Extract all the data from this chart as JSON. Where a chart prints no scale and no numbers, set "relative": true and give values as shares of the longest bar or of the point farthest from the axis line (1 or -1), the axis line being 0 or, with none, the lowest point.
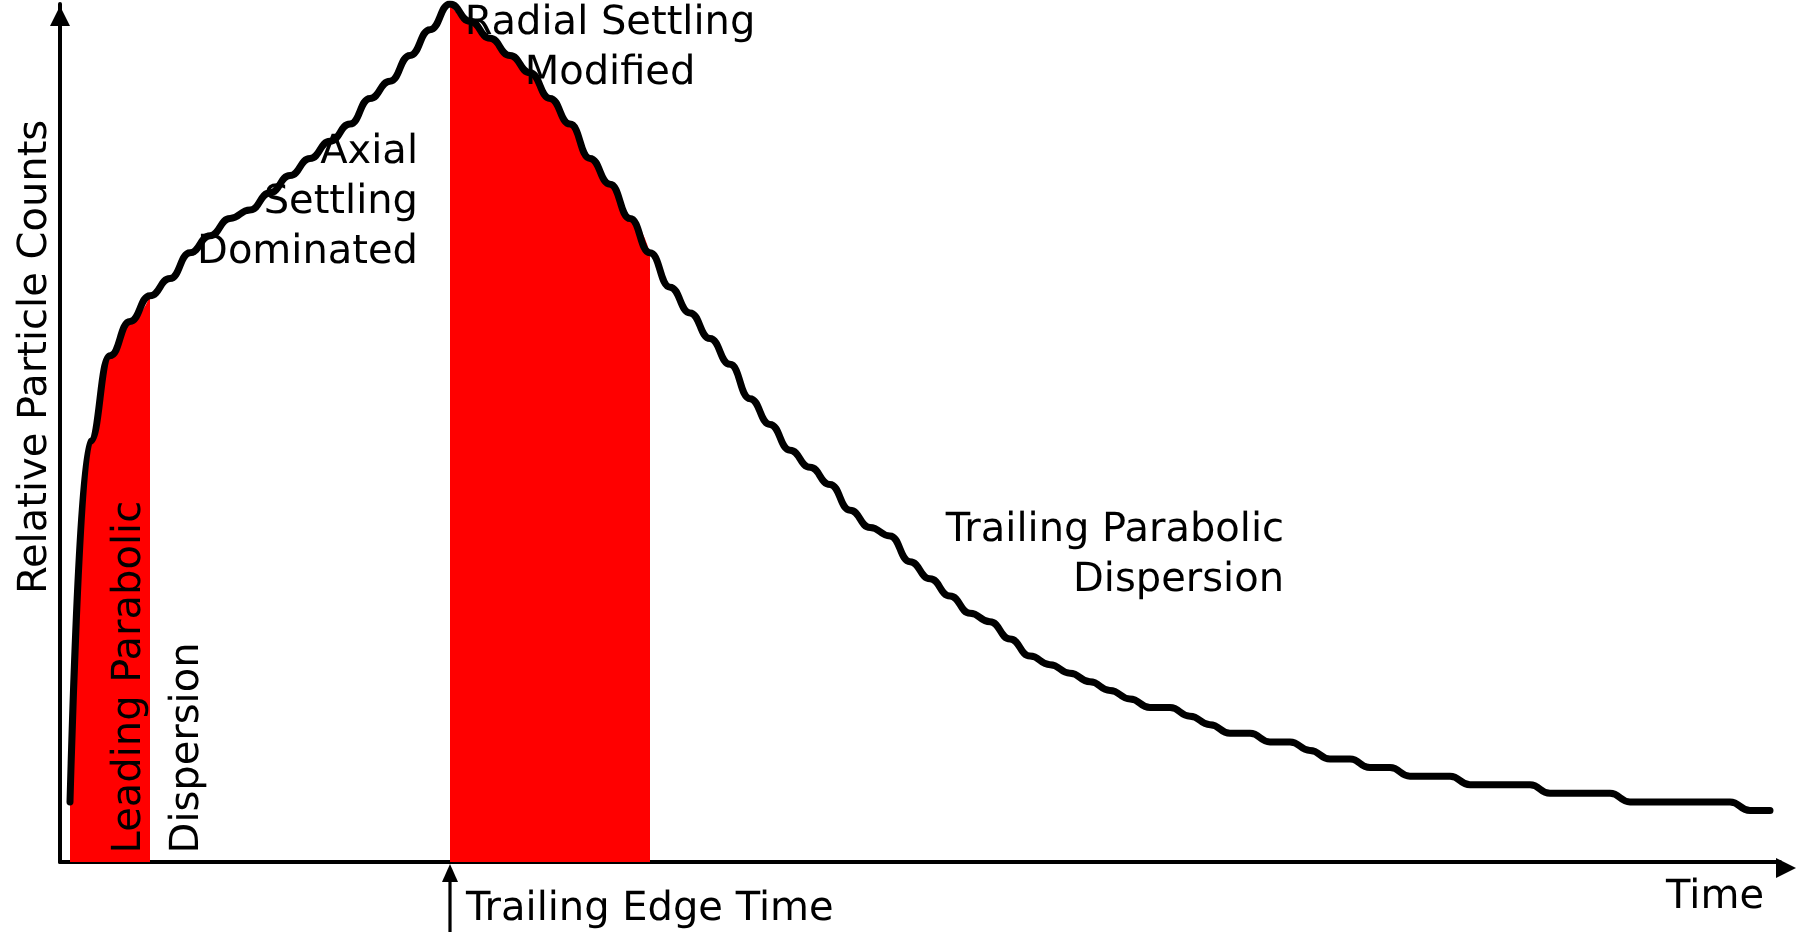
{
  "chart_data": {
    "type": "line",
    "relative": true,
    "xlabel": "Time",
    "ylabel": "Relative Particle Counts",
    "grid": false,
    "marker": "none",
    "line_style": "solid",
    "categories": [
      null,
      null,
      null,
      null,
      null,
      null,
      null,
      null,
      null,
      null,
      null,
      null,
      null,
      null,
      null,
      null,
      null,
      null,
      null,
      null,
      null,
      null,
      null,
      null,
      null,
      null,
      null,
      null,
      null,
      null,
      null,
      null,
      null,
      null,
      null,
      null,
      null,
      null,
      null,
      null,
      null,
      null,
      null,
      null,
      null,
      null,
      null,
      null,
      null,
      null,
      null,
      null,
      null,
      null,
      null,
      null,
      null,
      null,
      null,
      null,
      null,
      null,
      null,
      null,
      null,
      null,
      null,
      null,
      null,
      null,
      null,
      null,
      null,
      null,
      null,
      null,
      null,
      null,
      null,
      null,
      null,
      null,
      null,
      null,
      null,
      null
    ],
    "series": [
      {
        "type": "area",
        "color": "#ff0000",
        "values": [
          0.07,
          0.49,
          0.59,
          0.63,
          0.66,
          null,
          null,
          null,
          null,
          null,
          null,
          null,
          null,
          null,
          null,
          null,
          null,
          null,
          null,
          null,
          null,
          null,
          null,
          null,
          null,
          null,
          null,
          null,
          null,
          null,
          null,
          null,
          null,
          null,
          null,
          null,
          null,
          null,
          null,
          null,
          null,
          null,
          null,
          null,
          null,
          null,
          null,
          null,
          null,
          null,
          null,
          null,
          null,
          null,
          null,
          null,
          null,
          null,
          null,
          null,
          null,
          null,
          null,
          null,
          null,
          null,
          null,
          null,
          null,
          null,
          null,
          null,
          null,
          null,
          null,
          null,
          null,
          null,
          null,
          null,
          null,
          null,
          null,
          null,
          null,
          null
        ]
      },
      {
        "type": "area",
        "color": "#ff0000",
        "values": [
          null,
          null,
          null,
          null,
          null,
          null,
          null,
          null,
          null,
          null,
          null,
          null,
          null,
          null,
          null,
          null,
          null,
          null,
          null,
          1.0,
          0.98,
          0.96,
          0.94,
          0.92,
          0.89,
          0.86,
          0.82,
          0.79,
          0.75,
          0.71,
          null,
          null,
          null,
          null,
          null,
          null,
          null,
          null,
          null,
          null,
          null,
          null,
          null,
          null,
          null,
          null,
          null,
          null,
          null,
          null,
          null,
          null,
          null,
          null,
          null,
          null,
          null,
          null,
          null,
          null,
          null,
          null,
          null,
          null,
          null,
          null,
          null,
          null,
          null,
          null,
          null,
          null,
          null,
          null,
          null,
          null,
          null,
          null,
          null,
          null,
          null,
          null,
          null,
          null,
          null,
          null
        ]
      },
      {
        "color": "#000000",
        "values": [
          0.07,
          0.49,
          0.59,
          0.63,
          0.66,
          0.68,
          0.71,
          0.73,
          0.75,
          0.76,
          0.78,
          0.8,
          0.82,
          0.84,
          0.86,
          0.89,
          0.91,
          0.94,
          0.97,
          1.0,
          0.98,
          0.96,
          0.94,
          0.92,
          0.89,
          0.86,
          0.82,
          0.79,
          0.75,
          0.71,
          0.67,
          0.64,
          0.61,
          0.58,
          0.54,
          0.51,
          0.48,
          0.46,
          0.44,
          0.41,
          0.39,
          0.38,
          0.35,
          0.33,
          0.31,
          0.29,
          0.28,
          0.26,
          0.24,
          0.23,
          0.22,
          0.21,
          0.2,
          0.19,
          0.18,
          0.18,
          0.17,
          0.16,
          0.15,
          0.15,
          0.14,
          0.14,
          0.13,
          0.12,
          0.12,
          0.11,
          0.11,
          0.1,
          0.1,
          0.1,
          0.09,
          0.09,
          0.09,
          0.09,
          0.08,
          0.08,
          0.08,
          0.08,
          0.07,
          0.07,
          0.07,
          0.07,
          0.07,
          0.07,
          0.06,
          0.06
        ]
      }
    ],
    "annotations": [
      "Radial Settling\nModified",
      "Axial\nSettling\nDominated",
      "Trailing Parabolic\nDispersion",
      "Leading Parabolic",
      "Dispersion",
      "Trailing Edge Time"
    ]
  }
}
